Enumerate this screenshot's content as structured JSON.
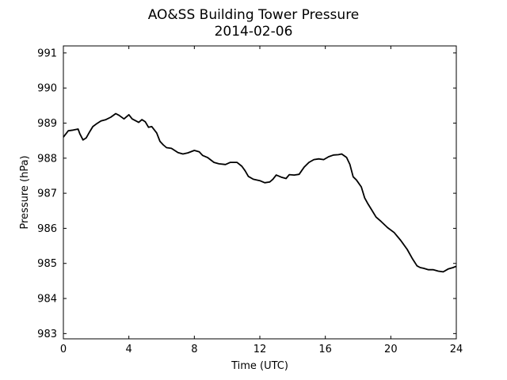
{
  "chart_data": {
    "type": "line",
    "title": "AO&SS Building Tower Pressure",
    "subtitle": "2014-02-06",
    "xlabel": "Time (UTC)",
    "ylabel": "Pressure (hPa)",
    "xlim": [
      0,
      24
    ],
    "ylim": [
      982.85,
      991.2
    ],
    "xticks": [
      0,
      4,
      8,
      12,
      16,
      20,
      24
    ],
    "yticks": [
      983,
      984,
      985,
      986,
      987,
      988,
      989,
      990,
      991
    ],
    "grid": false,
    "line_color": "#000000",
    "series": [
      {
        "x": [
          0,
          0.3,
          0.6,
          0.9,
          1.0,
          1.2,
          1.4,
          1.6,
          1.8,
          2.0,
          2.3,
          2.6,
          2.9,
          3.2,
          3.4,
          3.7,
          4.0,
          4.2,
          4.6,
          4.8,
          5.0,
          5.2,
          5.4,
          5.7,
          5.9,
          6.1,
          6.3,
          6.6,
          7.0,
          7.3,
          7.6,
          8.0,
          8.3,
          8.5,
          8.8,
          9.2,
          9.5,
          9.9,
          10.2,
          10.6,
          10.9,
          11.1,
          11.3,
          11.6,
          12.0,
          12.3,
          12.6,
          12.8,
          13.0,
          13.3,
          13.6,
          13.8,
          14.1,
          14.4,
          14.7,
          15.0,
          15.3,
          15.6,
          15.9,
          16.2,
          16.5,
          16.8,
          17.0,
          17.3,
          17.5,
          17.7,
          17.9,
          18.2,
          18.4,
          18.6,
          18.8,
          19.1,
          19.4,
          19.8,
          20.2,
          20.6,
          21.0,
          21.3,
          21.6,
          21.8,
          22.0,
          22.3,
          22.6,
          22.9,
          23.2,
          23.5,
          23.8,
          24.0
        ],
        "y": [
          988.6,
          988.78,
          988.8,
          988.83,
          988.7,
          988.52,
          988.58,
          988.75,
          988.9,
          988.97,
          989.06,
          989.1,
          989.17,
          989.27,
          989.22,
          989.12,
          989.24,
          989.12,
          989.02,
          989.1,
          989.04,
          988.88,
          988.9,
          988.72,
          988.48,
          988.38,
          988.3,
          988.28,
          988.16,
          988.12,
          988.15,
          988.22,
          988.18,
          988.08,
          988.02,
          987.88,
          987.84,
          987.82,
          987.88,
          987.88,
          987.77,
          987.64,
          987.48,
          987.4,
          987.36,
          987.3,
          987.32,
          987.4,
          987.52,
          987.46,
          987.42,
          987.53,
          987.52,
          987.54,
          987.74,
          987.88,
          987.96,
          987.98,
          987.96,
          988.04,
          988.09,
          988.1,
          988.12,
          988.02,
          987.82,
          987.47,
          987.38,
          987.18,
          986.87,
          986.7,
          986.55,
          986.32,
          986.2,
          986.02,
          985.88,
          985.66,
          985.4,
          985.15,
          984.93,
          984.88,
          984.86,
          984.82,
          984.82,
          984.78,
          984.76,
          984.84,
          984.88,
          984.92
        ]
      }
    ]
  }
}
